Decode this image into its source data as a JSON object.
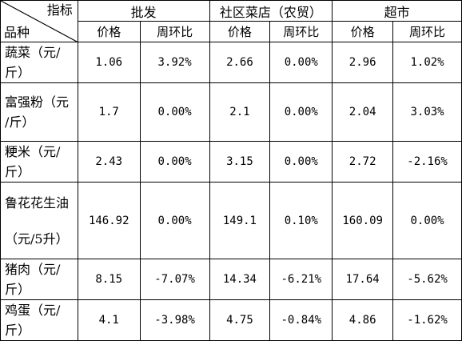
{
  "header": {
    "corner_top": "指标",
    "corner_bottom": "品种",
    "groups": [
      "批发",
      "社区菜店（农贸）",
      "超市"
    ],
    "sub_headers": [
      "价格",
      "周环比",
      "价格",
      "周环比",
      "价格",
      "周环比"
    ]
  },
  "rows": [
    {
      "name": "蔬菜（元/",
      "unit": "斤）",
      "cells": [
        "1.06",
        "3.92%",
        "2.66",
        "0.00%",
        "2.96",
        "1.02%"
      ]
    },
    {
      "name": "富强粉（元",
      "unit": "/斤）",
      "cells": [
        "1.7",
        "0.00%",
        "2.1",
        "0.00%",
        "2.04",
        "3.03%"
      ]
    },
    {
      "name": "粳米（元/",
      "unit": "斤）",
      "cells": [
        "2.43",
        "0.00%",
        "3.15",
        "0.00%",
        "2.72",
        "-2.16%"
      ]
    },
    {
      "name": "鲁花花生油",
      "unit": "（元/5升）",
      "cells": [
        "146.92",
        "0.00%",
        "149.1",
        "0.10%",
        "160.09",
        "0.00%"
      ]
    },
    {
      "name": "猪肉（元/",
      "unit": "斤）",
      "cells": [
        "8.15",
        "-7.07%",
        "14.34",
        "-6.21%",
        "17.64",
        "-5.62%"
      ]
    },
    {
      "name": "鸡蛋（元/",
      "unit": "斤）",
      "cells": [
        "4.1",
        "-3.98%",
        "4.75",
        "-0.84%",
        "4.86",
        "-1.62%"
      ]
    }
  ]
}
